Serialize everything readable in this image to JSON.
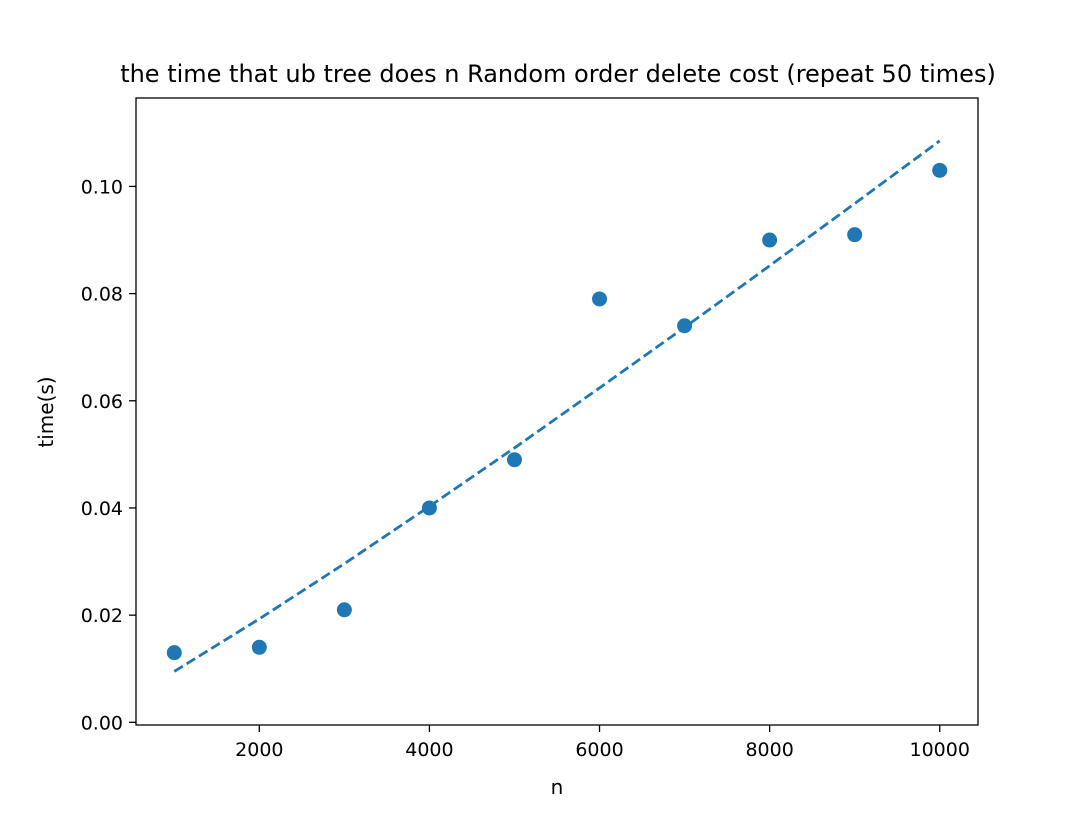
{
  "chart_data": {
    "type": "scatter",
    "title": "the time that ub tree does n Random order delete cost (repeat 50 times)",
    "xlabel": "n",
    "ylabel": "time(s)",
    "xlim": [
      550,
      10450
    ],
    "ylim": [
      -0.0005,
      0.1165
    ],
    "xticks": [
      2000,
      4000,
      6000,
      8000,
      10000
    ],
    "xtick_labels": [
      "2000",
      "4000",
      "6000",
      "8000",
      "10000"
    ],
    "yticks": [
      0.0,
      0.02,
      0.04,
      0.06,
      0.08,
      0.1
    ],
    "ytick_labels": [
      "0.00",
      "0.02",
      "0.04",
      "0.06",
      "0.08",
      "0.10"
    ],
    "grid": false,
    "color": "#1f77b4",
    "series": [
      {
        "type": "scatter",
        "x": [
          1000,
          2000,
          3000,
          4000,
          5000,
          6000,
          7000,
          8000,
          9000,
          10000
        ],
        "y": [
          0.013,
          0.014,
          0.021,
          0.04,
          0.049,
          0.079,
          0.074,
          0.09,
          0.091,
          0.103
        ]
      },
      {
        "type": "line",
        "style": "dashed",
        "x": [
          1000,
          2000,
          3000,
          4000,
          5000,
          6000,
          7000,
          8000,
          9000,
          10000
        ],
        "y": [
          0.0095,
          0.0193,
          0.0296,
          0.0403,
          0.0512,
          0.0624,
          0.0737,
          0.0852,
          0.0968,
          0.1085
        ]
      }
    ]
  }
}
